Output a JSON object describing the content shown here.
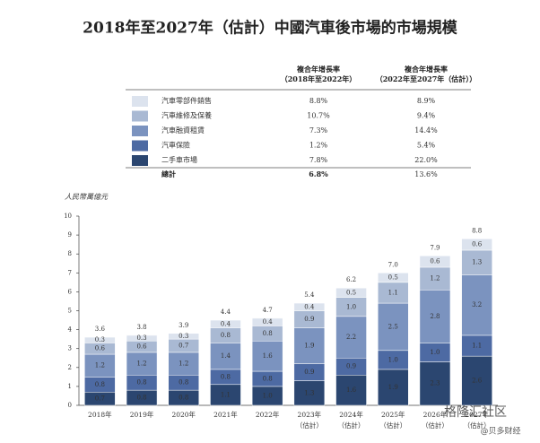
{
  "chart_data": {
    "type": "stacked_bar",
    "title": "2018年至2027年（估計）中國汽車後市場的市場規模",
    "y_label": "人民幣萬億元",
    "cagr_headers": [
      [
        "複合年增長率",
        "（2018年至2022年）"
      ],
      [
        "複合年增長率",
        "（2022年至2027年（估計））"
      ]
    ],
    "categories": [
      "2018年",
      "2019年",
      "2020年",
      "2021年",
      "2022年",
      "2023年\n（估計）",
      "2024年\n（估計）",
      "2025年\n（估計）",
      "2026年\n（估計）",
      "2027年\n（估計）"
    ],
    "series": [
      {
        "name": "二手車市場",
        "color": "#2b4670",
        "label_color": "#ffffff",
        "cagr": [
          "7.8%",
          "22.0%"
        ],
        "values": [
          0.7,
          0.8,
          0.8,
          1.1,
          1.0,
          1.3,
          1.6,
          1.9,
          2.3,
          2.6
        ],
        "value_labels": [
          "0.7",
          "0.8",
          "0.8",
          "1.1",
          "1.0",
          "1.3",
          "1.6",
          "1.9",
          "2.3",
          "2.6"
        ]
      },
      {
        "name": "汽車保險",
        "color": "#4d6aa3",
        "label_color": "#ffffff",
        "cagr": [
          "1.2%",
          "5.4%"
        ],
        "values": [
          0.8,
          0.8,
          0.8,
          0.8,
          0.8,
          0.9,
          0.9,
          1.0,
          1.0,
          1.1
        ],
        "value_labels": [
          "0.8",
          "0.8",
          "0.8",
          "0.8",
          "0.8",
          "0.9",
          "0.9",
          "1.0",
          "1.0",
          "1.1"
        ]
      },
      {
        "name": "汽車融資租賃",
        "color": "#7b93bf",
        "label_color": "#ffffff",
        "cagr": [
          "7.3%",
          "14.4%"
        ],
        "values": [
          1.2,
          1.2,
          1.2,
          1.4,
          1.6,
          1.9,
          2.2,
          2.5,
          2.8,
          3.2
        ],
        "value_labels": [
          "1.2",
          "1.2",
          "1.2",
          "1.4",
          "1.6",
          "1.9",
          "2.2",
          "2.5",
          "2.8",
          "3.2"
        ]
      },
      {
        "name": "汽車維修及保養",
        "color": "#a9b9d3",
        "label_color": "#222222",
        "cagr": [
          "10.7%",
          "9.4%"
        ],
        "values": [
          0.6,
          0.6,
          0.7,
          0.8,
          0.8,
          0.9,
          1.0,
          1.1,
          1.2,
          1.3
        ],
        "value_labels": [
          "0.6",
          "0.6",
          "0.7",
          "0.8",
          "0.8",
          "0.9",
          "1.0",
          "1.1",
          "1.2",
          "1.3"
        ]
      },
      {
        "name": "汽車零部件銷售",
        "color": "#dce3ee",
        "label_color": "#222222",
        "cagr": [
          "8.8%",
          "8.9%"
        ],
        "values": [
          0.3,
          0.3,
          0.3,
          0.4,
          0.4,
          0.4,
          0.5,
          0.5,
          0.6,
          0.6
        ],
        "value_labels": [
          "0.3",
          "0.3",
          "0.3",
          "0.4",
          "0.4",
          "0.4",
          "0.5",
          "0.5",
          "0.6",
          "0.6"
        ]
      }
    ],
    "total": {
      "name": "總計",
      "cagr": [
        "6.8%",
        "13.6%"
      ],
      "values": [
        3.6,
        3.8,
        3.9,
        4.4,
        4.7,
        5.4,
        6.2,
        7.0,
        7.9,
        8.8
      ],
      "value_labels": [
        "3.6",
        "3.8",
        "3.9",
        "4.4",
        "4.7",
        "5.4",
        "6.2",
        "7.0",
        "7.9",
        "8.8"
      ]
    },
    "ylim": [
      0,
      10
    ],
    "yticks": [
      0,
      1,
      2,
      3,
      4,
      5,
      6,
      7,
      8,
      9,
      10
    ],
    "watermark": [
      "格隆汇社区",
      "@贝多财经"
    ]
  }
}
